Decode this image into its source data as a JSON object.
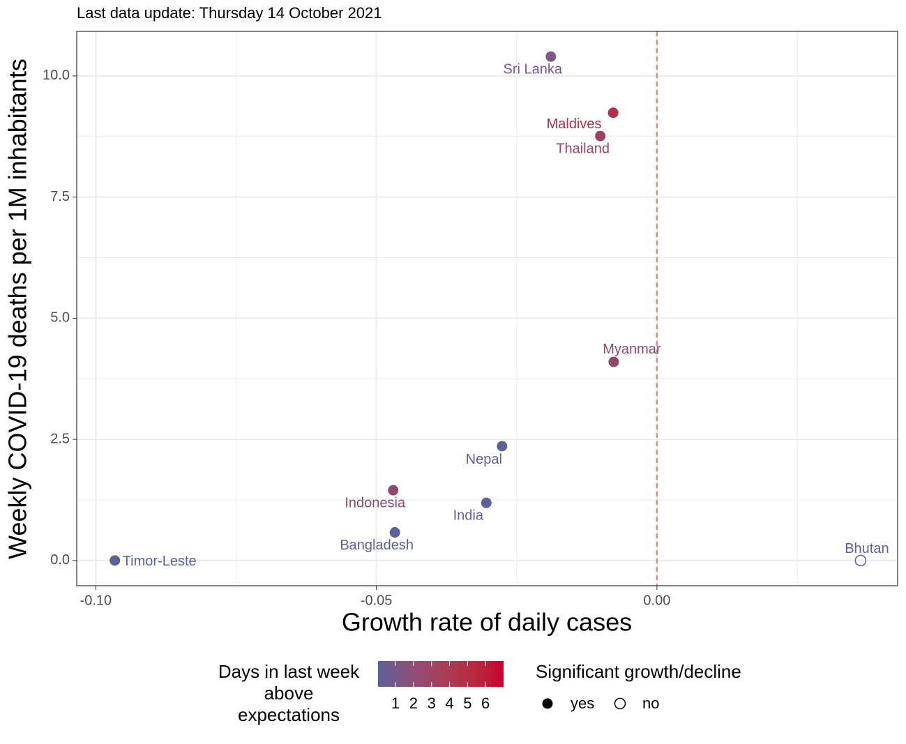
{
  "chart_data": {
    "type": "scatter",
    "title": "Last data update: Thursday 14 October 2021",
    "x_label": "Growth rate of daily cases",
    "y_label": "Weekly COVID-19 deaths per 1M inhabitants",
    "xlim": [
      -0.1034,
      0.0429
    ],
    "ylim": [
      -0.52,
      10.92
    ],
    "xticks": [
      {
        "value": -0.1,
        "label": "-0.10"
      },
      {
        "value": -0.05,
        "label": "-0.05"
      },
      {
        "value": 0,
        "label": "0.00"
      }
    ],
    "yticks": [
      {
        "value": 0,
        "label": "0.0"
      },
      2.5,
      {
        "value": 5,
        "label": "5.0"
      },
      7.5,
      {
        "value": 10,
        "label": "10.0"
      }
    ],
    "minor_xticks": [
      -0.075,
      -0.025,
      0.025
    ],
    "minor_yticks": [
      1.25,
      3.75,
      6.25,
      8.75
    ],
    "grid": true,
    "vline": {
      "x": 0,
      "color": "#f8766d"
    },
    "series": [
      {
        "name": "Sri Lanka",
        "color": "#7a5888",
        "filled": true,
        "x": [
          -0.0189
        ],
        "values": [
          10.4
        ]
      },
      {
        "name": "Maldives",
        "color": "#b0304a",
        "filled": true,
        "x": [
          -0.0078
        ],
        "values": [
          9.24
        ]
      },
      {
        "name": "Thailand",
        "color": "#a23f5c",
        "filled": true,
        "x": [
          -0.0101
        ],
        "values": [
          8.76
        ]
      },
      {
        "name": "Myanmar",
        "color": "#8e4a6c",
        "filled": true,
        "x": [
          -0.0077
        ],
        "values": [
          4.1
        ]
      },
      {
        "name": "Nepal",
        "color": "#5c6199",
        "filled": true,
        "x": [
          -0.0276
        ],
        "values": [
          2.36
        ]
      },
      {
        "name": "Indonesia",
        "color": "#8e4a6c",
        "filled": true,
        "x": [
          -0.047
        ],
        "values": [
          1.45
        ]
      },
      {
        "name": "India",
        "color": "#5c6199",
        "filled": true,
        "x": [
          -0.0304
        ],
        "values": [
          1.19
        ]
      },
      {
        "name": "Bangladesh",
        "color": "#5c6199",
        "filled": true,
        "x": [
          -0.0467
        ],
        "values": [
          0.58
        ]
      },
      {
        "name": "Timor-Leste",
        "color": "#5c6199",
        "filled": true,
        "x": [
          -0.0966
        ],
        "values": [
          0
        ]
      },
      {
        "name": "Bhutan",
        "color": "#5c6199",
        "filled": false,
        "x": [
          0.0363
        ],
        "values": [
          0
        ]
      }
    ],
    "color_legend": {
      "title": [
        "Days in last week",
        "above",
        "expectations"
      ],
      "limits": [
        0.03,
        7
      ],
      "ticks": [
        1,
        2,
        3,
        4,
        5,
        6
      ],
      "colors": [
        "#5a6199",
        "#7b5685",
        "#974a70",
        "#a5405b",
        "#b33348",
        "#bc2238",
        "#c80030"
      ]
    },
    "shape_legend": {
      "title": "Significant growth/decline",
      "entries": [
        "yes",
        "no"
      ]
    }
  }
}
